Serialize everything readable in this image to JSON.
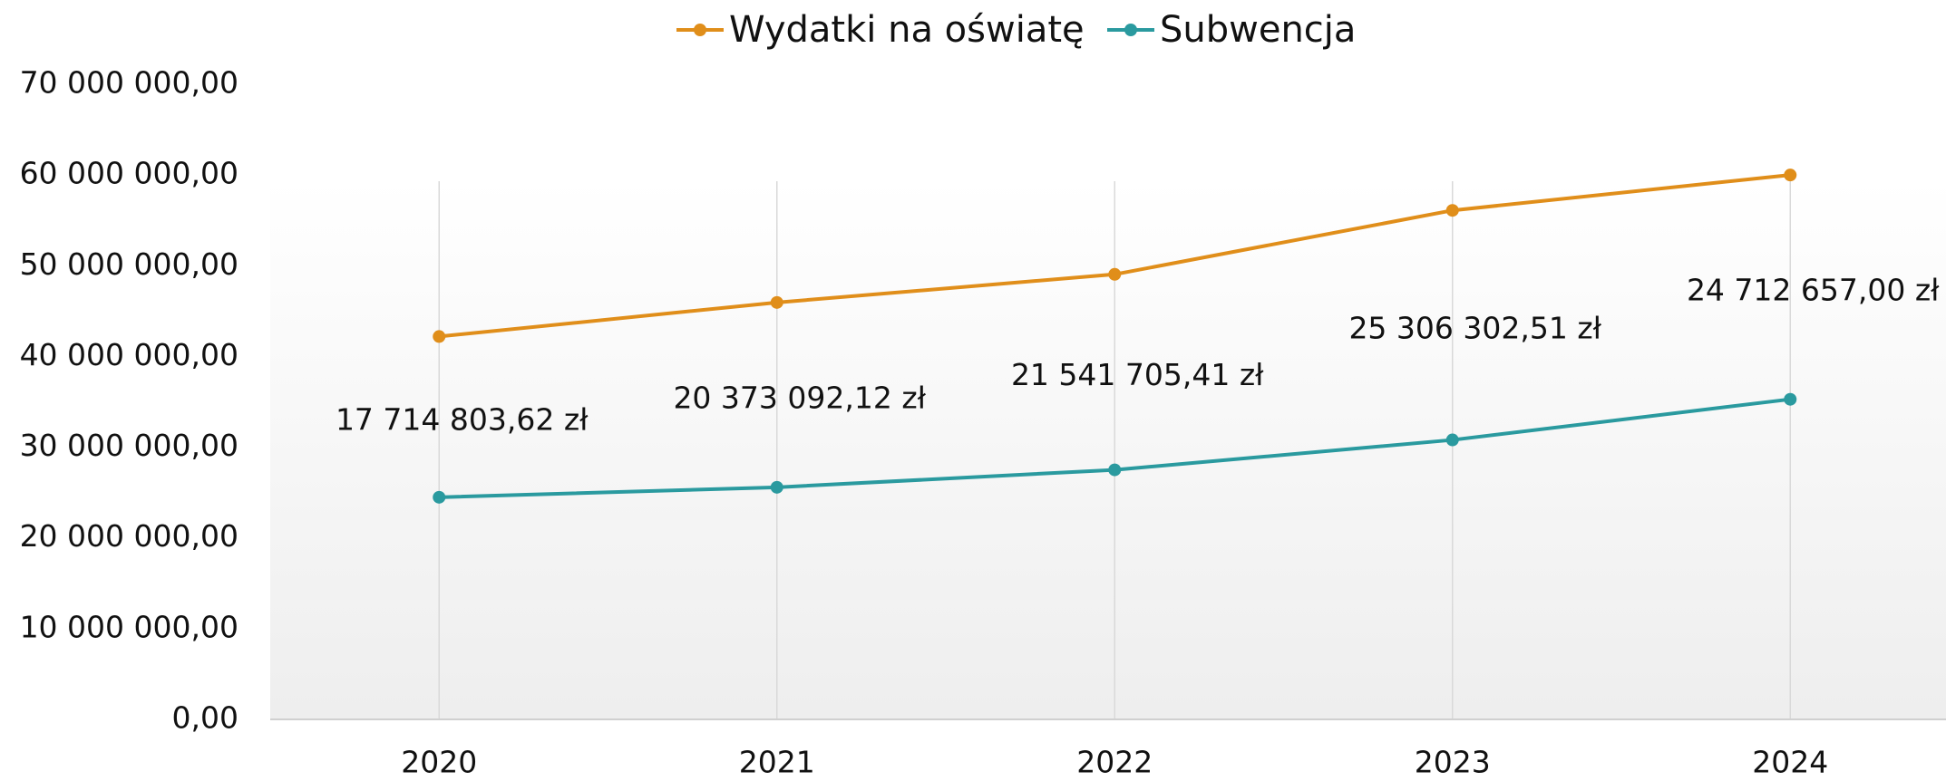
{
  "chart_data": {
    "type": "line",
    "categories": [
      "2020",
      "2021",
      "2022",
      "2023",
      "2024"
    ],
    "series": [
      {
        "name": "Wydatki na oświatę",
        "color": "#e08e1a",
        "values": [
          42200000,
          45950000,
          49050000,
          56100000,
          60000000
        ]
      },
      {
        "name": "Subwencja",
        "color": "#2a9a9f",
        "values": [
          24480000,
          25580000,
          27500000,
          30800000,
          35280000
        ]
      }
    ],
    "annotations": [
      "17 714 803,62 zł",
      "20 373 092,12 zł",
      "21 541 705,41 zł",
      "25 306 302,51 zł",
      "24 712 657,00 zł"
    ],
    "ylim": [
      0,
      70000000
    ],
    "yticks": [
      {
        "value": 0,
        "label": "0,00"
      },
      {
        "value": 10000000,
        "label": "10 000 000,00"
      },
      {
        "value": 20000000,
        "label": "20 000 000,00"
      },
      {
        "value": 30000000,
        "label": "30 000 000,00"
      },
      {
        "value": 40000000,
        "label": "40 000 000,00"
      },
      {
        "value": 50000000,
        "label": "50 000 000,00"
      },
      {
        "value": 60000000,
        "label": "60 000 000,00"
      },
      {
        "value": 70000000,
        "label": "70 000 000,00"
      }
    ],
    "vertical_grid": true,
    "legend": "top"
  }
}
